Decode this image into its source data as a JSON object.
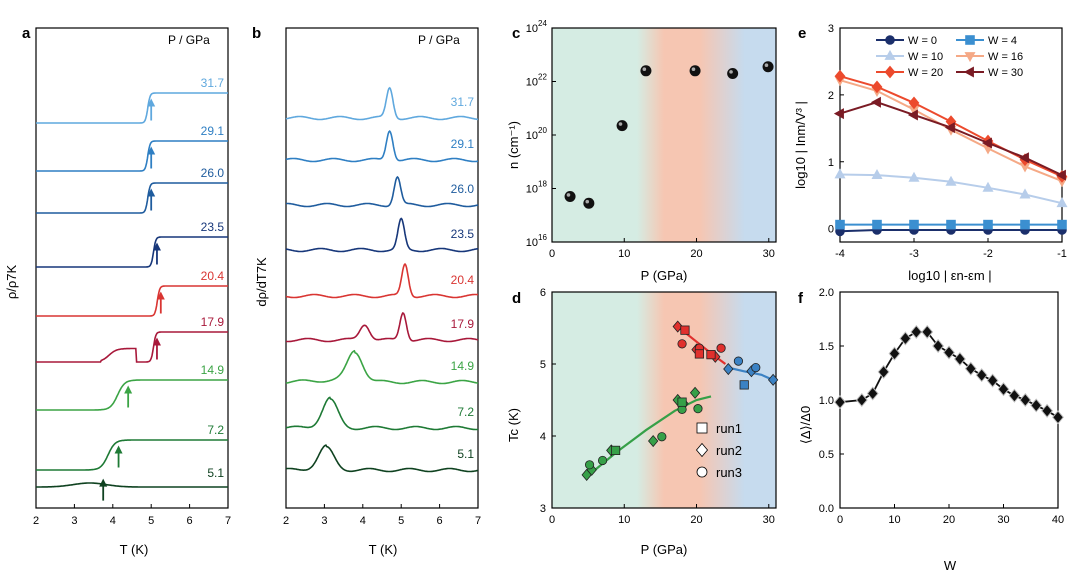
{
  "colors": {
    "p31.7": "#5fa8de",
    "p29.1": "#2f7fc3",
    "p26.0": "#1f5c9e",
    "p23.5": "#17377a",
    "p20.4": "#d93532",
    "p17.9": "#a8183a",
    "p14.9": "#3ba445",
    "p7.2": "#1e7a35",
    "p5.1": "#0f4220",
    "green_zone": "#d5ece3",
    "orange_zone": "#f6c6b2",
    "blue_zone": "#c6dbee",
    "w0": "#1b2f6b",
    "w4": "#3b8fd0",
    "w10": "#b7cdea",
    "w16": "#f5a986",
    "w20": "#ec4a2d",
    "w30": "#7a1b24",
    "marker_green": "#36a048",
    "marker_red": "#e0302d",
    "marker_blue": "#3b82c4",
    "marker_black": "#111111"
  },
  "panels": {
    "a": {
      "letter": "a",
      "plabel": "P / GPa",
      "xlabel": "T (K)",
      "ylabel": "ρ/ρ7K"
    },
    "b": {
      "letter": "b",
      "plabel": "P / GPa",
      "xlabel": "T (K)",
      "ylabel": "dρ/dT7K"
    },
    "c": {
      "letter": "c",
      "xlabel": "P (GPa)",
      "ylabel": "n (cm⁻¹)"
    },
    "d": {
      "letter": "d",
      "xlabel": "P (GPa)",
      "ylabel": "Tc (K)"
    },
    "e": {
      "letter": "e",
      "xlabel": "log10 | εn-εm |",
      "ylabel": "log10 | Inm/V³ |"
    },
    "f": {
      "letter": "f",
      "xlabel": "W",
      "ylabel": "⟨Δ⟩/Δ0"
    }
  },
  "chart_data": [
    {
      "panel": "a",
      "type": "line",
      "title": "",
      "xlabel": "T (K)",
      "ylabel": "ρ/ρ7K",
      "xlim": [
        2,
        7
      ],
      "x_ticks": [
        "2",
        "3",
        "4",
        "5",
        "6",
        "7"
      ],
      "pressures": [
        "31.7",
        "29.1",
        "26.0",
        "23.5",
        "20.4",
        "17.9",
        "14.9",
        "7.2",
        "5.1"
      ],
      "arrow_T": [
        5.0,
        5.0,
        5.0,
        5.15,
        5.25,
        5.15,
        4.4,
        4.15,
        3.75
      ]
    },
    {
      "panel": "b",
      "type": "line",
      "title": "",
      "xlabel": "T (K)",
      "ylabel": "dρ/dT7K",
      "xlim": [
        2,
        7
      ],
      "x_ticks": [
        "2",
        "3",
        "4",
        "5",
        "6",
        "7"
      ],
      "pressures": [
        "31.7",
        "29.1",
        "26.0",
        "23.5",
        "20.4",
        "17.9",
        "14.9",
        "7.2",
        "5.1"
      ],
      "peak_T": [
        4.7,
        4.7,
        4.9,
        5.0,
        5.1,
        5.05,
        3.8,
        3.15,
        3.05
      ]
    },
    {
      "panel": "c",
      "type": "scatter",
      "title": "",
      "xlabel": "P (GPa)",
      "ylabel": "n (cm⁻¹)",
      "xlim": [
        0,
        31
      ],
      "ylim_log10": [
        16,
        24
      ],
      "x_ticks": [
        "0",
        "10",
        "20",
        "30"
      ],
      "y_ticks": [
        "10",
        "10",
        "10",
        "10",
        "10"
      ],
      "y_exponents": [
        "16",
        "18",
        "20",
        "22",
        "24"
      ],
      "points": [
        [
          2.5,
          17.7
        ],
        [
          5.1,
          17.45
        ],
        [
          9.7,
          20.35
        ],
        [
          13.0,
          22.4
        ],
        [
          19.8,
          22.4
        ],
        [
          25.0,
          22.3
        ],
        [
          29.9,
          22.55
        ]
      ]
    },
    {
      "panel": "d",
      "type": "scatter",
      "title": "",
      "xlabel": "P (GPa)",
      "ylabel": "Tc (K)",
      "xlim": [
        0,
        31
      ],
      "ylim": [
        3,
        6
      ],
      "x_ticks": [
        "0",
        "10",
        "20",
        "30"
      ],
      "y_ticks": [
        "3",
        "4",
        "5",
        "6"
      ],
      "legend": [
        "run1",
        "run2",
        "run3"
      ],
      "series": [
        {
          "color": "green",
          "shape": "diamond",
          "points": [
            [
              4.8,
              3.46
            ],
            [
              5.5,
              3.53
            ],
            [
              8.2,
              3.8
            ],
            [
              14.0,
              3.93
            ],
            [
              17.4,
              4.5
            ],
            [
              18.2,
              4.45
            ],
            [
              19.8,
              4.6
            ]
          ]
        },
        {
          "color": "green",
          "shape": "circle",
          "points": [
            [
              5.2,
              3.6
            ],
            [
              7.0,
              3.66
            ],
            [
              15.2,
              3.99
            ],
            [
              18.0,
              4.37
            ],
            [
              20.2,
              4.38
            ]
          ]
        },
        {
          "color": "green",
          "shape": "square",
          "points": [
            [
              8.8,
              3.8
            ],
            [
              18.0,
              4.47
            ]
          ]
        },
        {
          "color": "red",
          "shape": "diamond",
          "points": [
            [
              17.4,
              5.52
            ],
            [
              20.0,
              5.2
            ],
            [
              22.6,
              5.1
            ]
          ]
        },
        {
          "color": "red",
          "shape": "circle",
          "points": [
            [
              18.0,
              5.28
            ],
            [
              20.4,
              5.22
            ],
            [
              23.4,
              5.22
            ]
          ]
        },
        {
          "color": "red",
          "shape": "square",
          "points": [
            [
              18.4,
              5.47
            ],
            [
              20.4,
              5.14
            ],
            [
              22.0,
              5.13
            ]
          ]
        },
        {
          "color": "blue",
          "shape": "diamond",
          "points": [
            [
              24.4,
              4.93
            ],
            [
              27.6,
              4.9
            ],
            [
              30.6,
              4.78
            ]
          ]
        },
        {
          "color": "blue",
          "shape": "circle",
          "points": [
            [
              25.8,
              5.04
            ],
            [
              28.2,
              4.95
            ]
          ]
        },
        {
          "color": "blue",
          "shape": "square",
          "points": [
            [
              26.6,
              4.71
            ]
          ]
        }
      ],
      "fits": [
        {
          "color": "green",
          "points": [
            [
              5,
              3.45
            ],
            [
              9,
              3.78
            ],
            [
              13,
              4.08
            ],
            [
              17,
              4.35
            ],
            [
              20,
              4.5
            ],
            [
              22,
              4.55
            ]
          ]
        },
        {
          "color": "red",
          "points": [
            [
              17,
              5.55
            ],
            [
              19.5,
              5.35
            ],
            [
              22,
              5.15
            ],
            [
              24,
              5.0
            ]
          ]
        },
        {
          "color": "blue",
          "points": [
            [
              24,
              4.96
            ],
            [
              26.5,
              4.9
            ],
            [
              29,
              4.85
            ],
            [
              31,
              4.76
            ]
          ]
        }
      ]
    },
    {
      "panel": "e",
      "type": "line",
      "title": "",
      "xlabel": "log10 | εn-εm |",
      "ylabel": "log10 | Inm/V³ |",
      "xlim": [
        -4,
        -1
      ],
      "ylim": [
        -0.2,
        3
      ],
      "x_ticks": [
        "-4",
        "-3",
        "-2",
        "-1"
      ],
      "y_ticks": [
        "0",
        "1",
        "2",
        "3"
      ],
      "legend_placement": "top",
      "x": [
        -4,
        -3.5,
        -3,
        -2.5,
        -2,
        -1.5,
        -1
      ],
      "series": [
        {
          "name": "W = 0",
          "values": [
            -0.04,
            -0.02,
            -0.02,
            -0.02,
            -0.02,
            -0.02,
            -0.02
          ],
          "color": "w0",
          "marker": "circle"
        },
        {
          "name": "W = 4",
          "values": [
            0.06,
            0.06,
            0.06,
            0.06,
            0.06,
            0.06,
            0.06
          ],
          "color": "w4",
          "marker": "square"
        },
        {
          "name": "W = 10",
          "values": [
            0.81,
            0.8,
            0.76,
            0.7,
            0.61,
            0.51,
            0.38
          ],
          "color": "w10",
          "marker": "triangle-up"
        },
        {
          "name": "W = 16",
          "values": [
            2.22,
            2.06,
            1.78,
            1.48,
            1.2,
            0.93,
            0.71
          ],
          "color": "w16",
          "marker": "triangle-down"
        },
        {
          "name": "W = 20",
          "values": [
            2.28,
            2.12,
            1.88,
            1.6,
            1.31,
            1.03,
            0.78
          ],
          "color": "w20",
          "marker": "diamond"
        },
        {
          "name": "W = 30",
          "values": [
            1.72,
            1.89,
            1.7,
            1.51,
            1.28,
            1.06,
            0.8
          ],
          "color": "w30",
          "marker": "triangle-left"
        }
      ]
    },
    {
      "panel": "f",
      "type": "line",
      "title": "",
      "xlabel": "W",
      "ylabel": "⟨Δ⟩/Δ0",
      "xlim": [
        0,
        40
      ],
      "ylim": [
        0,
        2
      ],
      "x_ticks": [
        "0",
        "10",
        "20",
        "30",
        "40"
      ],
      "y_ticks": [
        "0.0",
        "0.5",
        "1.0",
        "1.5",
        "2.0"
      ],
      "x": [
        0,
        4,
        6,
        8,
        10,
        12,
        14,
        16,
        18,
        20,
        22,
        24,
        26,
        28,
        30,
        32,
        34,
        36,
        38,
        40
      ],
      "values": [
        0.98,
        1.0,
        1.06,
        1.26,
        1.43,
        1.57,
        1.63,
        1.63,
        1.5,
        1.44,
        1.38,
        1.29,
        1.23,
        1.18,
        1.1,
        1.04,
        1.0,
        0.95,
        0.9,
        0.84
      ]
    }
  ]
}
